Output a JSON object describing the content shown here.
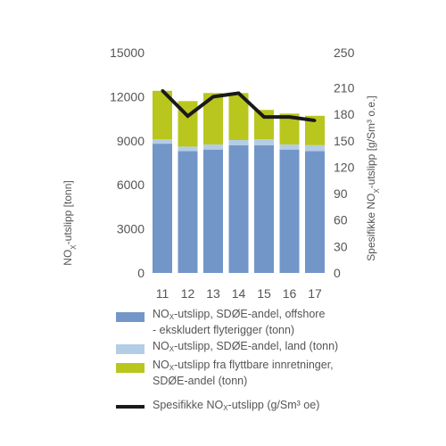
{
  "chart_data": {
    "type": "bar",
    "categories": [
      "11",
      "12",
      "13",
      "14",
      "15",
      "16",
      "17"
    ],
    "stacked": true,
    "series": [
      {
        "name": "NOX-utslipp, SDØE-andel, offshore - ekskludert flyterigger (tonn)",
        "values": [
          8800,
          8300,
          8400,
          8700,
          8700,
          8400,
          8300
        ],
        "color": "#7396c8",
        "axis": "left"
      },
      {
        "name": "NOX-utslipp, SDØE-andel, land (tonn)",
        "values": [
          300,
          300,
          350,
          350,
          400,
          350,
          400
        ],
        "color": "#b4cde6",
        "axis": "left"
      },
      {
        "name": "NOX-utslipp fra flyttbare innretninger, SDØE-andel (tonn)",
        "values": [
          3300,
          3100,
          3500,
          3200,
          2000,
          2100,
          2000
        ],
        "color": "#b9c61e",
        "axis": "left"
      },
      {
        "name": "Spesifikke NOX-utslipp (g/Sm³ oe)",
        "type": "line",
        "values": [
          207,
          178,
          200,
          204,
          177,
          177,
          173
        ],
        "color": "#1a1a1a",
        "axis": "right"
      }
    ],
    "ylabel": "NOX-utslipp [tonn]",
    "ylabel_right": "Spesifikke NOX-utslipp [g/Sm³ o.e.]",
    "ylim": [
      0,
      15000
    ],
    "ylim_right": [
      0,
      250
    ],
    "yticks": [
      "0",
      "3000",
      "6000",
      "9000",
      "12000",
      "15000"
    ],
    "yticks_right": [
      "0",
      "30",
      "60",
      "90",
      "120",
      "150",
      "180",
      "210",
      "250"
    ],
    "grid": false,
    "legend_position": "bottom"
  },
  "legend": {
    "items": [
      {
        "pre": "NO",
        "sub": "X",
        "post": "-utslipp, SDØE-andel, offshore",
        "line2": "- ekskludert flyterigger (tonn)"
      },
      {
        "pre": "NO",
        "sub": "X",
        "post": "-utslipp, SDØE-andel, land (tonn)",
        "line2": ""
      },
      {
        "pre": "NO",
        "sub": "X",
        "post": "-utslipp fra flyttbare innretninger,",
        "line2": "SDØE-andel (tonn)"
      },
      {
        "pre": "Spesifikke NO",
        "sub": "X",
        "post": "-utslipp (g/Sm³ oe)",
        "line2": ""
      }
    ]
  },
  "axis_titles": {
    "left": {
      "pre": "NO",
      "sub": "X",
      "post": "-utslipp [tonn]"
    },
    "right": {
      "pre": "Spesifikke NO",
      "sub": "X",
      "post": "-utslipp [g/Sm³ o.e.]"
    }
  }
}
